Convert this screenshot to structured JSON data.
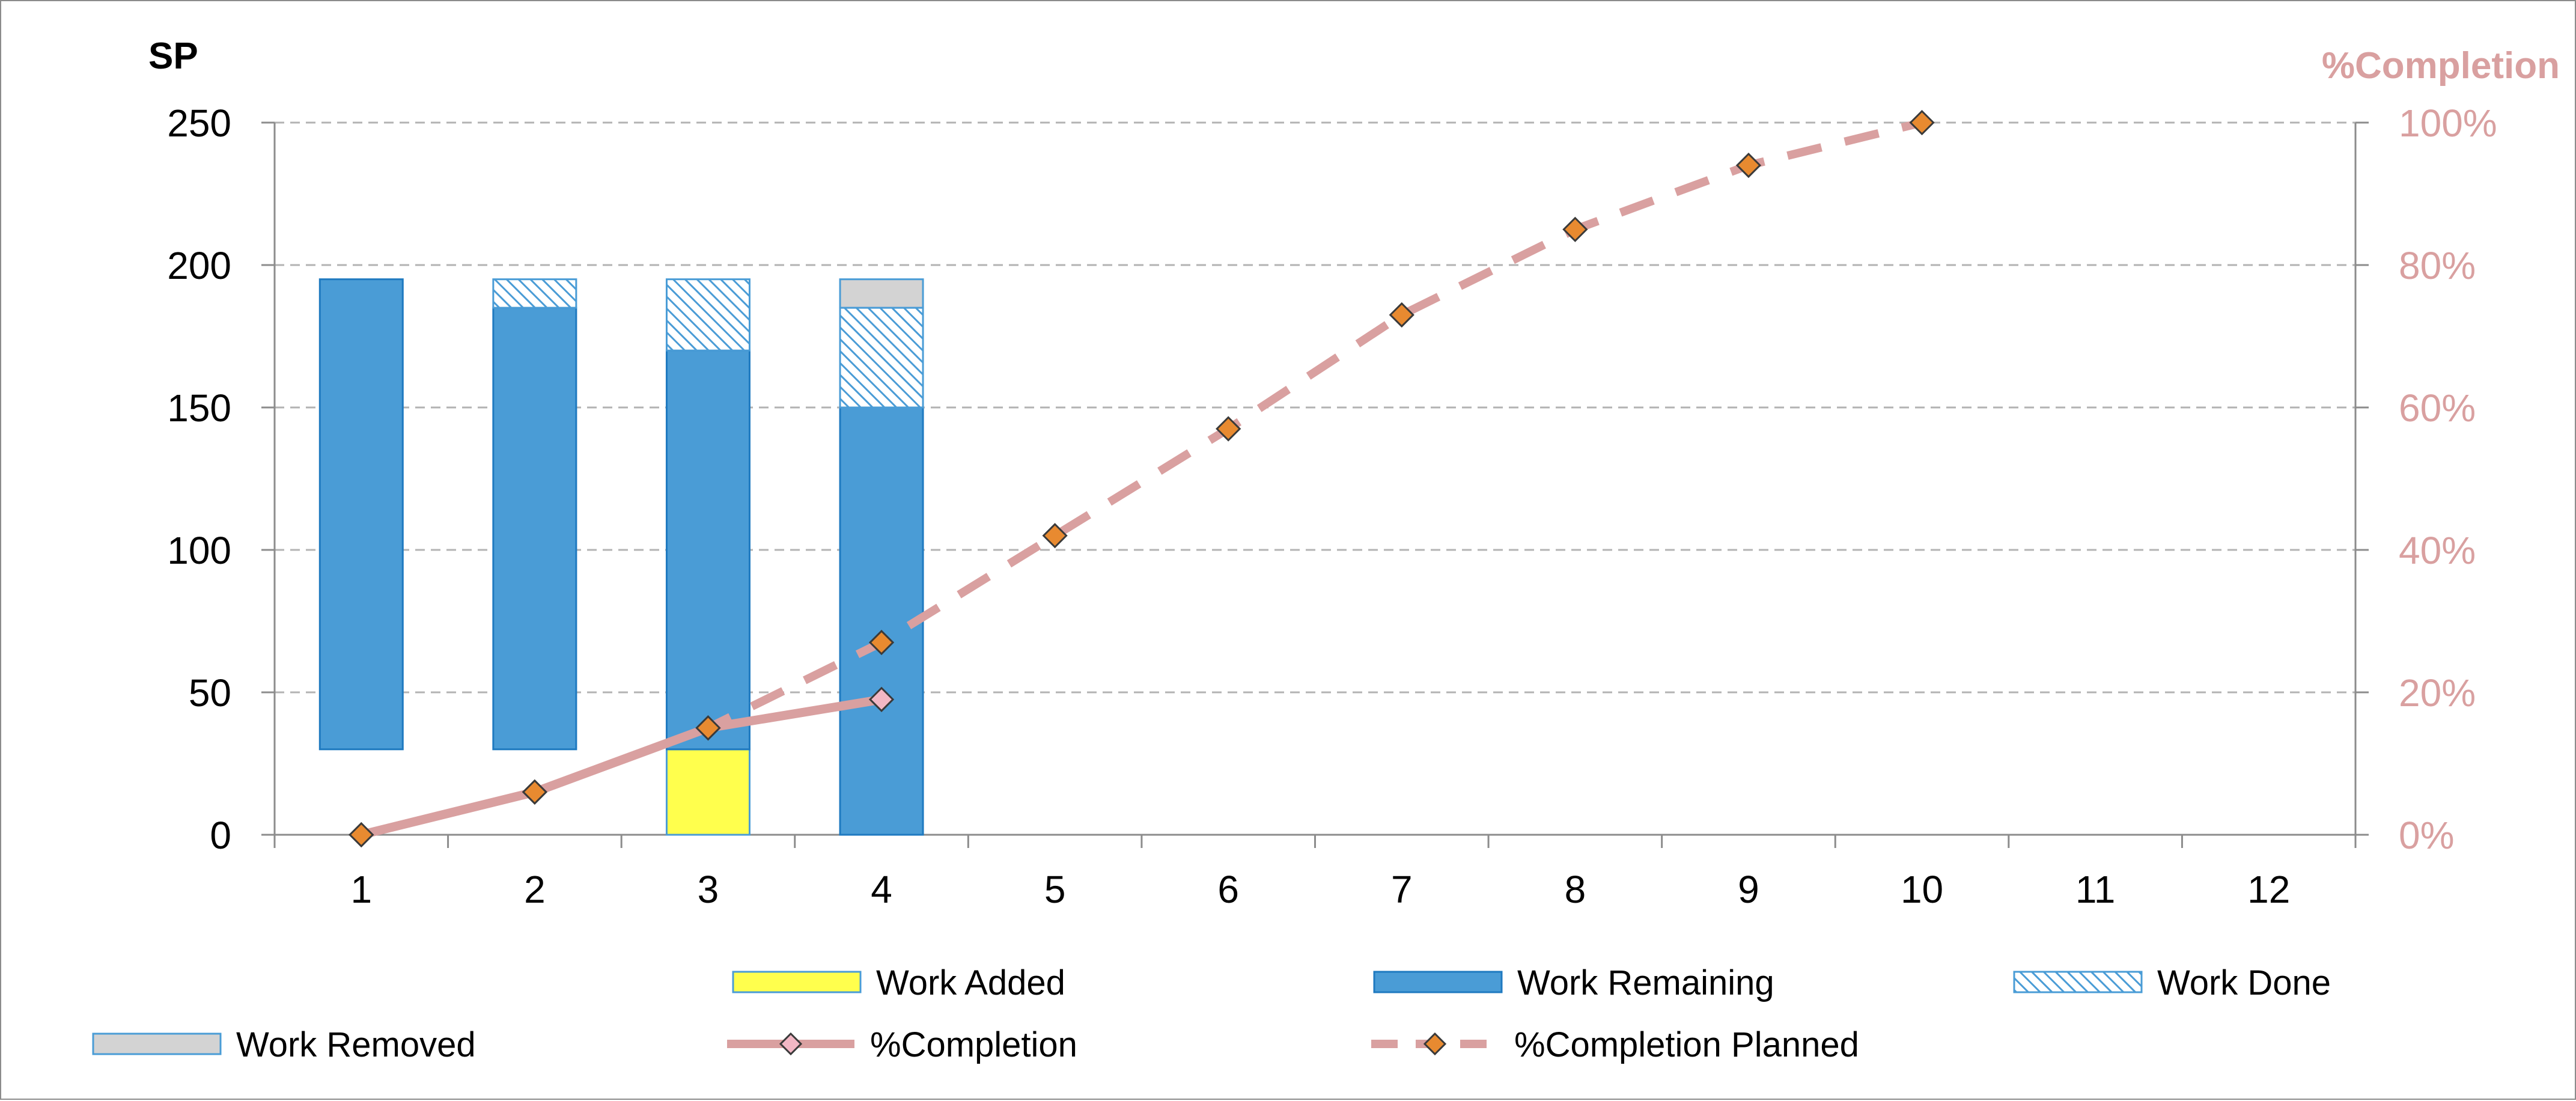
{
  "chart_data": {
    "type": "bar",
    "categories": [
      "1",
      "2",
      "3",
      "4",
      "5",
      "6",
      "7",
      "8",
      "9",
      "10",
      "11",
      "12"
    ],
    "ylabel": "SP",
    "y2label": "%Completion",
    "ylim": [
      0,
      250
    ],
    "y2lim": [
      0,
      1
    ],
    "yticks": [
      "0",
      "50",
      "100",
      "150",
      "200",
      "250"
    ],
    "y2ticks": [
      "0%",
      "20%",
      "40%",
      "60%",
      "80%",
      "100%"
    ],
    "grid": true,
    "legend_position": "bottom",
    "series": [
      {
        "name": "Work Added",
        "kind": "stacked-bar",
        "color": "#ffff4d",
        "border": "#4a9cd6",
        "values": [
          0,
          0,
          30,
          0,
          null,
          null,
          null,
          null,
          null,
          null,
          null,
          null
        ]
      },
      {
        "name": "Work Remaining",
        "kind": "stacked-bar",
        "color": "#4a9cd6",
        "border": "#1f7ac0",
        "values": [
          165,
          155,
          140,
          150,
          null,
          null,
          null,
          null,
          null,
          null,
          null,
          null
        ]
      },
      {
        "name": "Work  Done",
        "kind": "stacked-bar",
        "pattern": "hatched",
        "color": "#4a9cd6",
        "values": [
          0,
          10,
          25,
          35,
          null,
          null,
          null,
          null,
          null,
          null,
          null,
          null
        ]
      },
      {
        "name": "Work Removed",
        "kind": "stacked-bar",
        "color": "#d3d3d3",
        "border": "#4a9cd6",
        "values": [
          0,
          0,
          0,
          10,
          null,
          null,
          null,
          null,
          null,
          null,
          null,
          null
        ]
      },
      {
        "name": "%Completion",
        "kind": "line",
        "axis": "right",
        "color": "#d9a0a0",
        "marker_color": "#f2b7c4",
        "dashed": false,
        "values": [
          0,
          0.06,
          0.15,
          0.19,
          null,
          null,
          null,
          null,
          null,
          null,
          null,
          null
        ]
      },
      {
        "name": "%Completion Planned",
        "kind": "line",
        "axis": "right",
        "color": "#d9a0a0",
        "marker_color": "#e88a30",
        "dashed": true,
        "values": [
          0,
          0.06,
          0.15,
          0.27,
          0.42,
          0.57,
          0.73,
          0.85,
          0.94,
          1.0,
          null,
          null
        ]
      }
    ],
    "bar_base": [
      30,
      30,
      0,
      0,
      null,
      null,
      null,
      null,
      null,
      null,
      null,
      null
    ]
  }
}
